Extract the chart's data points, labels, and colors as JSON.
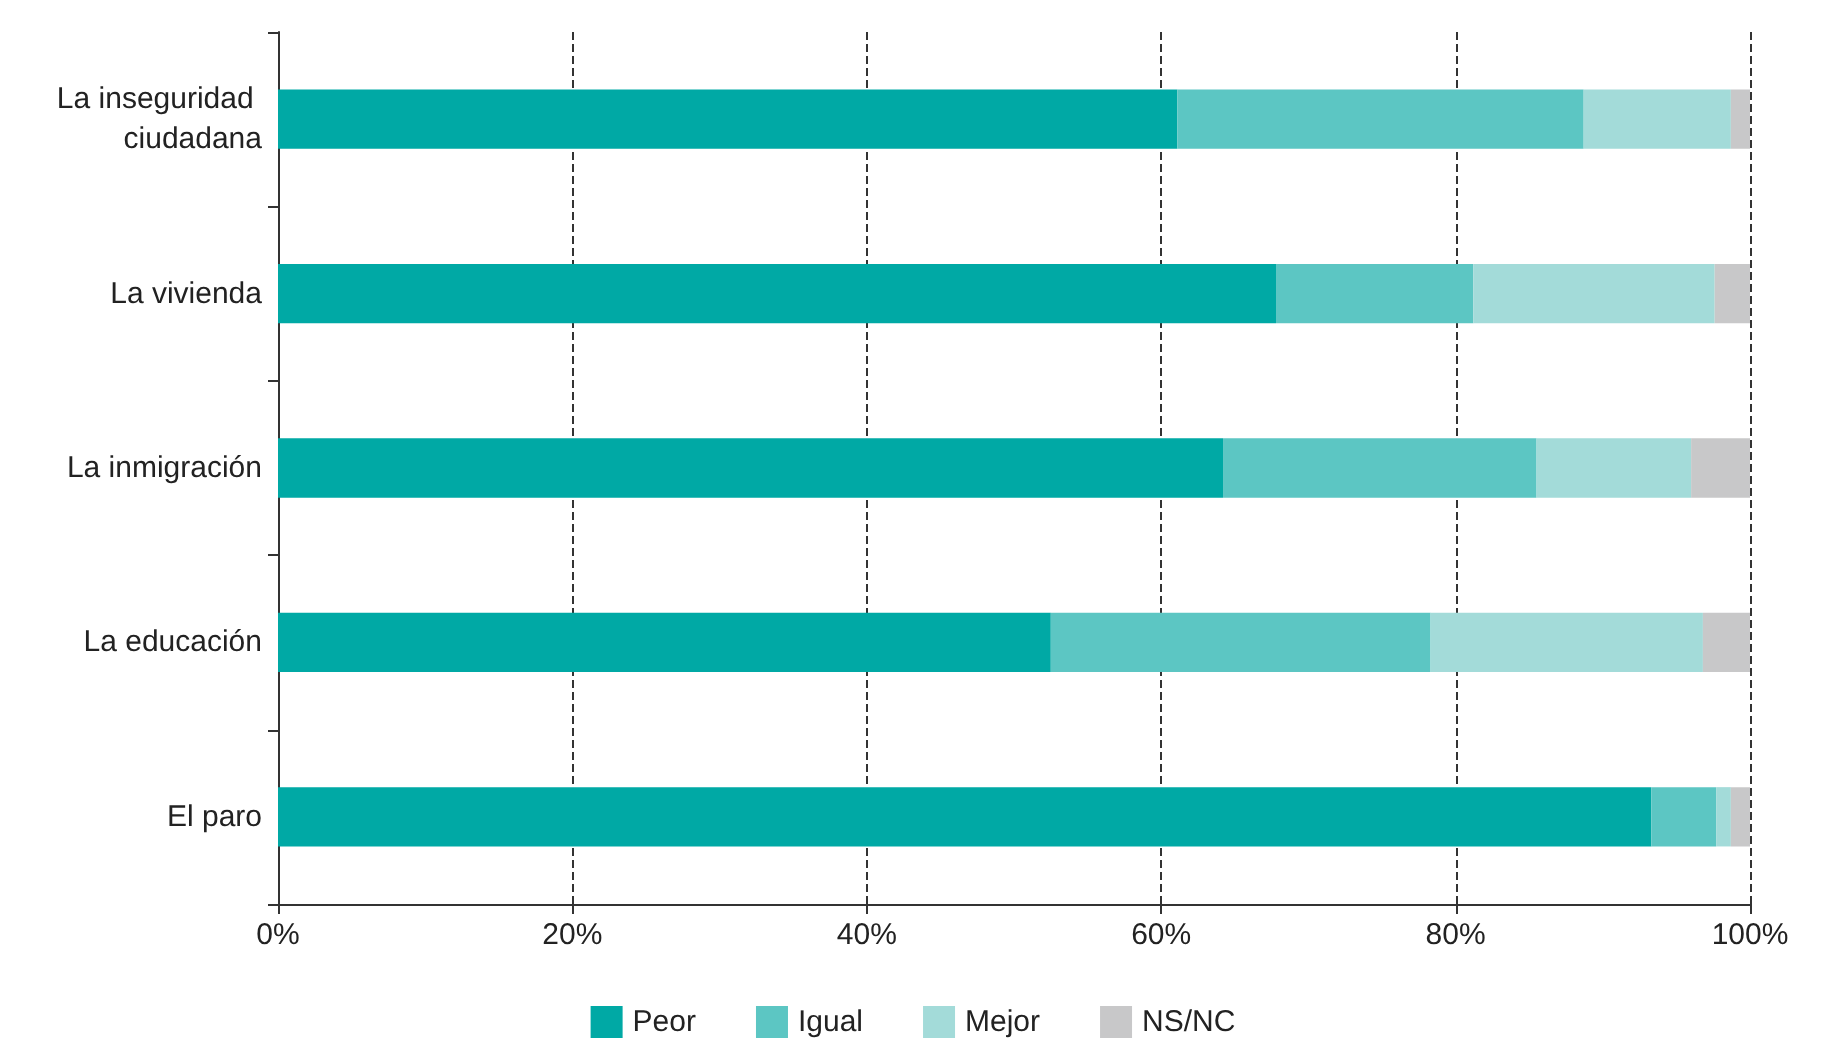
{
  "chart_data": {
    "type": "bar",
    "orientation": "horizontal",
    "stacked": true,
    "categories": [
      "La inseguridad ciudadana",
      "La vivienda",
      "La inmigración",
      "La educación",
      "El paro"
    ],
    "series": [
      {
        "name": "Peor",
        "color": "#00a9a5",
        "values": [
          61.1,
          67.8,
          64.2,
          52.5,
          93.3
        ]
      },
      {
        "name": "Igual",
        "color": "#5cc6c3",
        "values": [
          27.6,
          13.4,
          21.3,
          25.8,
          4.4
        ]
      },
      {
        "name": "Mejor",
        "color": "#a3dbd9",
        "values": [
          10,
          16.4,
          10.5,
          18.5,
          1
        ]
      },
      {
        "name": "NS/NC",
        "color": "#c8c8c9",
        "values": [
          1.3,
          2.4,
          4,
          3.2,
          1.3
        ]
      }
    ],
    "xlim": [
      0,
      100
    ],
    "xticks": [
      {
        "value": 0,
        "label": "0%"
      },
      {
        "value": 20,
        "label": "20%"
      },
      {
        "value": 40,
        "label": "40%"
      },
      {
        "value": 60,
        "label": "60%"
      },
      {
        "value": 80,
        "label": "80%"
      },
      {
        "value": 100,
        "label": "100%"
      }
    ],
    "grid": "x",
    "legend": "bottom"
  }
}
